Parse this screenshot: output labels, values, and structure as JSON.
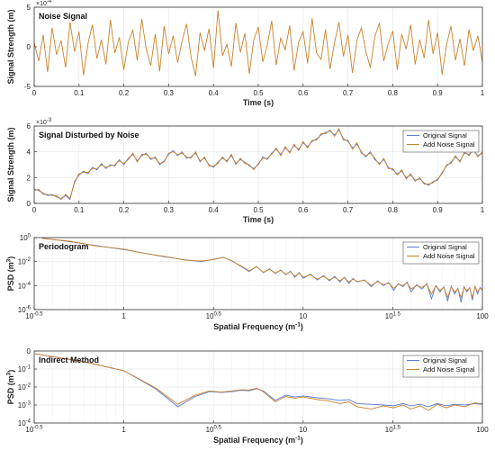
{
  "colors": {
    "original": "#5b7bd6",
    "noisy": "#c9822a",
    "grid": "#e6e6e6",
    "axis": "#333333"
  },
  "chart_data": [
    {
      "type": "line",
      "title": "Noise Signal",
      "xlabel": "Time (s)",
      "ylabel": "Signal Strength (m)",
      "exponent": "×10",
      "exponent_power": "-4",
      "xlim": [
        0,
        1
      ],
      "ylim": [
        -5,
        5
      ],
      "xticks": [
        "0",
        "0.1",
        "0.2",
        "0.3",
        "0.4",
        "0.5",
        "0.6",
        "0.7",
        "0.8",
        "0.9",
        "1"
      ],
      "yticks": [
        "-5",
        "0",
        "5"
      ],
      "series": [
        {
          "values": [
            0.5,
            -1.8,
            1.5,
            -3.2,
            2.4,
            -1.0,
            0.8,
            -2.6,
            3.1,
            -0.6,
            1.9,
            -3.6,
            0.4,
            2.8,
            -1.5,
            0.9,
            -2.2,
            3.4,
            -0.8,
            1.2,
            -2.9,
            0.6,
            2.1,
            -1.7,
            3.5,
            -0.3,
            -2.4,
            1.6,
            -3.1,
            2.6,
            -0.9,
            1.4,
            -2.0,
            0.7,
            2.9,
            -1.3,
            -3.7,
            1.8,
            -0.5,
            2.3,
            -2.7,
            4.6,
            -1.1,
            0.3,
            -2.5,
            3.0,
            -0.7,
            1.7,
            -3.4,
            0.9,
            2.5,
            -1.9,
            0.2,
            3.3,
            -2.3,
            1.1,
            -0.4,
            2.7,
            -3.0,
            0.6,
            1.9,
            -2.1,
            3.6,
            -0.8,
            -1.6,
            2.2,
            -2.8,
            0.5,
            3.1,
            -1.2,
            1.5,
            -3.3,
            0.8,
            2.4,
            -0.6,
            -2.6,
            1.3,
            3.0,
            -1.8,
            0.4,
            2.0,
            -2.9,
            1.6,
            -0.3,
            2.8,
            -2.2,
            0.9,
            -1.4,
            3.4,
            -0.9,
            1.8,
            -3.5,
            0.3,
            2.6,
            -1.7,
            1.0,
            -2.4,
            2.2,
            -0.5,
            1.4,
            -2.0
          ]
        }
      ]
    },
    {
      "type": "line",
      "title": "Signal Disturbed by Noise",
      "xlabel": "Time (s)",
      "ylabel": "Signal Strength (m)",
      "exponent": "×10",
      "exponent_power": "-3",
      "xlim": [
        0,
        1
      ],
      "ylim": [
        0,
        6
      ],
      "xticks": [
        "0",
        "0.1",
        "0.2",
        "0.3",
        "0.4",
        "0.5",
        "0.6",
        "0.7",
        "0.8",
        "0.9",
        "1"
      ],
      "yticks": [
        "0",
        "2",
        "4",
        "6"
      ],
      "legend_placement": "top-right",
      "series": [
        {
          "name": "Original Signal",
          "values": [
            1.1,
            1.0,
            0.8,
            0.6,
            0.7,
            0.5,
            0.4,
            0.6,
            0.3,
            1.7,
            2.2,
            2.5,
            2.3,
            2.8,
            2.6,
            3.1,
            2.7,
            3.0,
            2.9,
            3.4,
            3.0,
            3.5,
            3.8,
            3.3,
            3.7,
            3.9,
            3.4,
            3.6,
            3.0,
            3.3,
            3.8,
            4.1,
            3.7,
            4.0,
            3.5,
            3.6,
            3.9,
            3.3,
            3.5,
            3.0,
            2.8,
            3.2,
            3.5,
            3.3,
            3.7,
            3.1,
            3.4,
            3.2,
            2.9,
            2.7,
            3.0,
            3.6,
            3.4,
            3.9,
            4.2,
            3.8,
            4.3,
            4.0,
            4.5,
            4.2,
            4.7,
            4.4,
            4.8,
            5.0,
            5.3,
            5.5,
            5.6,
            5.3,
            5.7,
            5.0,
            4.8,
            4.3,
            4.6,
            4.0,
            3.6,
            4.0,
            3.4,
            3.1,
            3.4,
            2.8,
            2.6,
            2.3,
            2.5,
            2.0,
            2.2,
            1.8,
            1.9,
            1.6,
            1.4,
            1.7,
            1.8,
            2.4,
            2.9,
            3.2,
            3.6,
            3.3,
            3.9,
            3.8,
            4.1,
            3.7,
            3.9
          ]
        },
        {
          "name": "Add Noise Signal",
          "values": [
            1.0,
            1.1,
            0.7,
            0.7,
            0.6,
            0.6,
            0.3,
            0.7,
            0.4,
            1.6,
            2.3,
            2.4,
            2.4,
            2.7,
            2.7,
            3.0,
            2.8,
            2.9,
            3.0,
            3.3,
            3.1,
            3.4,
            3.9,
            3.2,
            3.8,
            3.8,
            3.5,
            3.5,
            3.1,
            3.2,
            3.9,
            4.0,
            3.8,
            3.9,
            3.6,
            3.5,
            4.0,
            3.2,
            3.6,
            2.9,
            2.9,
            3.1,
            3.6,
            3.2,
            3.8,
            3.0,
            3.5,
            3.1,
            3.0,
            2.6,
            3.1,
            3.5,
            3.5,
            3.8,
            4.3,
            3.7,
            4.4,
            3.9,
            4.6,
            4.1,
            4.8,
            4.3,
            4.9,
            4.9,
            5.4,
            5.4,
            5.7,
            5.2,
            5.8,
            4.9,
            4.9,
            4.2,
            4.7,
            3.9,
            3.7,
            3.9,
            3.5,
            3.0,
            3.5,
            2.7,
            2.7,
            2.2,
            2.6,
            1.9,
            2.3,
            1.7,
            2.0,
            1.5,
            1.5,
            1.6,
            1.9,
            2.3,
            3.0,
            3.1,
            3.7,
            3.2,
            4.0,
            3.7,
            4.2,
            3.6,
            4.0
          ]
        }
      ]
    },
    {
      "type": "line",
      "title": "Periodogram",
      "xlabel": "Spatial Frequency (m",
      "xlabel_sup": "-1",
      "xlabel_end": ")",
      "ylabel": "PSD (m",
      "ylabel_sup": "3",
      "ylabel_end": ")",
      "x_scale": "log",
      "y_scale": "log",
      "xlim": [
        0.3162,
        100
      ],
      "ylim": [
        1e-06,
        1
      ],
      "xticks": [
        {
          "base": "10",
          "power": "-0.5"
        },
        {
          "base": "1",
          "power": ""
        },
        {
          "base": "10",
          "power": "0.5"
        },
        {
          "base": "10",
          "power": ""
        },
        {
          "base": "10",
          "power": "1.5"
        },
        {
          "base": "100",
          "power": ""
        }
      ],
      "yticks": [
        {
          "base": "10",
          "power": "0"
        },
        {
          "base": "10",
          "power": "-2"
        },
        {
          "base": "10",
          "power": "-4"
        },
        {
          "base": "10",
          "power": "-6"
        }
      ],
      "legend_placement": "top-right",
      "series": [
        {
          "name": "Original Signal",
          "x": [
            0.35,
            0.5,
            0.7,
            1.0,
            1.3,
            1.7,
            2.2,
            2.7,
            3.2,
            3.6,
            4.0,
            4.5,
            5.0,
            5.5,
            6.0,
            6.5,
            7.0,
            7.5,
            8.0,
            8.5,
            9.0,
            9.5,
            10,
            11,
            12,
            13,
            14,
            15,
            16,
            17,
            18,
            19,
            20,
            22,
            24,
            26,
            28,
            30,
            32,
            34,
            36,
            38,
            40,
            43,
            46,
            49,
            52,
            55,
            58,
            61,
            64,
            67,
            70,
            73,
            76,
            79,
            82,
            85,
            88,
            91,
            94,
            97,
            100
          ],
          "y": [
            0.9,
            0.45,
            0.22,
            0.1,
            0.05,
            0.025,
            0.014,
            0.01,
            0.016,
            0.022,
            0.012,
            0.004,
            0.0015,
            0.004,
            0.0012,
            0.0025,
            0.001,
            0.002,
            0.0008,
            0.0016,
            0.0005,
            0.0012,
            0.0004,
            0.0009,
            0.0003,
            0.0007,
            0.00025,
            0.0006,
            0.0002,
            0.0005,
            0.00015,
            0.0004,
            0.0002,
            0.0003,
            8e-05,
            0.00025,
            0.0001,
            0.00018,
            4e-05,
            0.00015,
            8e-05,
            0.0002,
            3e-05,
            0.00012,
            5e-05,
            0.00015,
            8e-06,
            0.0001,
            3e-05,
            8e-05,
            5e-06,
            9e-05,
            2e-05,
            6e-05,
            4e-06,
            8e-05,
            3e-05,
            7e-05,
            6e-06,
            9e-05,
            2e-05,
            7e-05,
            4e-05
          ]
        },
        {
          "name": "Add Noise Signal",
          "x": [
            0.35,
            0.5,
            0.7,
            1.0,
            1.3,
            1.7,
            2.2,
            2.7,
            3.2,
            3.6,
            4.0,
            4.5,
            5.0,
            5.5,
            6.0,
            6.5,
            7.0,
            7.5,
            8.0,
            8.5,
            9.0,
            9.5,
            10,
            11,
            12,
            13,
            14,
            15,
            16,
            17,
            18,
            19,
            20,
            22,
            24,
            26,
            28,
            30,
            32,
            34,
            36,
            38,
            40,
            43,
            46,
            49,
            52,
            55,
            58,
            61,
            64,
            67,
            70,
            73,
            76,
            79,
            82,
            85,
            88,
            91,
            94,
            97,
            100
          ],
          "y": [
            0.85,
            0.5,
            0.2,
            0.11,
            0.048,
            0.027,
            0.013,
            0.011,
            0.015,
            0.023,
            0.011,
            0.0045,
            0.0017,
            0.0038,
            0.0013,
            0.0023,
            0.0011,
            0.0019,
            0.0009,
            0.0015,
            0.0006,
            0.0011,
            0.0005,
            0.0008,
            0.00035,
            0.0006,
            0.0003,
            0.0005,
            0.00025,
            0.00045,
            0.0002,
            0.00035,
            0.00022,
            0.00028,
            0.0001,
            0.00022,
            0.00012,
            0.00016,
            6e-05,
            0.00013,
            0.0001,
            0.00017,
            5e-05,
            0.0001,
            7e-05,
            0.00013,
            2e-05,
            9e-05,
            4e-05,
            7e-05,
            1e-05,
            8e-05,
            3e-05,
            5e-05,
            1e-05,
            7e-05,
            4e-05,
            6e-05,
            1e-05,
            8e-05,
            3e-05,
            6e-05,
            5e-05
          ]
        }
      ]
    },
    {
      "type": "line",
      "title": "Indirect Method",
      "xlabel": "Spatial Frequency (m",
      "xlabel_sup": "-1",
      "xlabel_end": ")",
      "ylabel": "PSD (m",
      "ylabel_sup": "3",
      "ylabel_end": ")",
      "x_scale": "log",
      "y_scale": "log",
      "xlim": [
        0.3162,
        100
      ],
      "ylim": [
        0.0001,
        1
      ],
      "xticks": [
        {
          "base": "10",
          "power": "-0.5"
        },
        {
          "base": "1",
          "power": ""
        },
        {
          "base": "10",
          "power": "0.5"
        },
        {
          "base": "10",
          "power": ""
        },
        {
          "base": "10",
          "power": "1.5"
        },
        {
          "base": "100",
          "power": ""
        }
      ],
      "yticks": [
        {
          "base": "0",
          "power": ""
        },
        {
          "base": "10",
          "power": "-1"
        },
        {
          "base": "10",
          "power": "-2"
        },
        {
          "base": "10",
          "power": "-3"
        },
        {
          "base": "10",
          "power": "-4"
        }
      ],
      "legend_placement": "top-right",
      "series": [
        {
          "name": "Original Signal",
          "x": [
            0.32,
            0.6,
            1.0,
            1.5,
            2.0,
            2.5,
            3.0,
            3.5,
            4.0,
            4.5,
            5.0,
            5.5,
            6.0,
            7.0,
            8.0,
            9.0,
            10,
            12,
            14,
            16,
            18,
            20,
            24,
            28,
            32,
            36,
            40,
            45,
            50,
            56,
            63,
            70,
            80,
            90,
            100
          ],
          "y": [
            0.7,
            0.25,
            0.08,
            0.008,
            0.0008,
            0.003,
            0.0055,
            0.005,
            0.0055,
            0.0065,
            0.0062,
            0.008,
            0.006,
            0.0018,
            0.0035,
            0.0028,
            0.0032,
            0.0025,
            0.0022,
            0.0018,
            0.002,
            0.0012,
            0.0011,
            0.001,
            0.0009,
            0.0012,
            0.0009,
            0.0011,
            0.0008,
            0.0012,
            0.0009,
            0.0011,
            0.001,
            0.0012,
            0.0011
          ]
        },
        {
          "name": "Add Noise Signal",
          "x": [
            0.32,
            0.6,
            1.0,
            1.5,
            2.0,
            2.5,
            3.0,
            3.5,
            4.0,
            4.5,
            5.0,
            5.5,
            6.0,
            7.0,
            8.0,
            9.0,
            10,
            12,
            14,
            16,
            18,
            20,
            24,
            28,
            32,
            36,
            40,
            45,
            50,
            56,
            63,
            70,
            80,
            90,
            100
          ],
          "y": [
            0.7,
            0.25,
            0.08,
            0.009,
            0.0011,
            0.0035,
            0.006,
            0.0052,
            0.006,
            0.007,
            0.0068,
            0.0085,
            0.0055,
            0.0015,
            0.003,
            0.0024,
            0.0028,
            0.002,
            0.0017,
            0.0012,
            0.0015,
            0.0008,
            0.0006,
            0.0009,
            0.0007,
            0.001,
            0.0006,
            0.0009,
            0.0005,
            0.0011,
            0.0007,
            0.001,
            0.0008,
            0.0013,
            0.0012
          ]
        }
      ]
    }
  ]
}
